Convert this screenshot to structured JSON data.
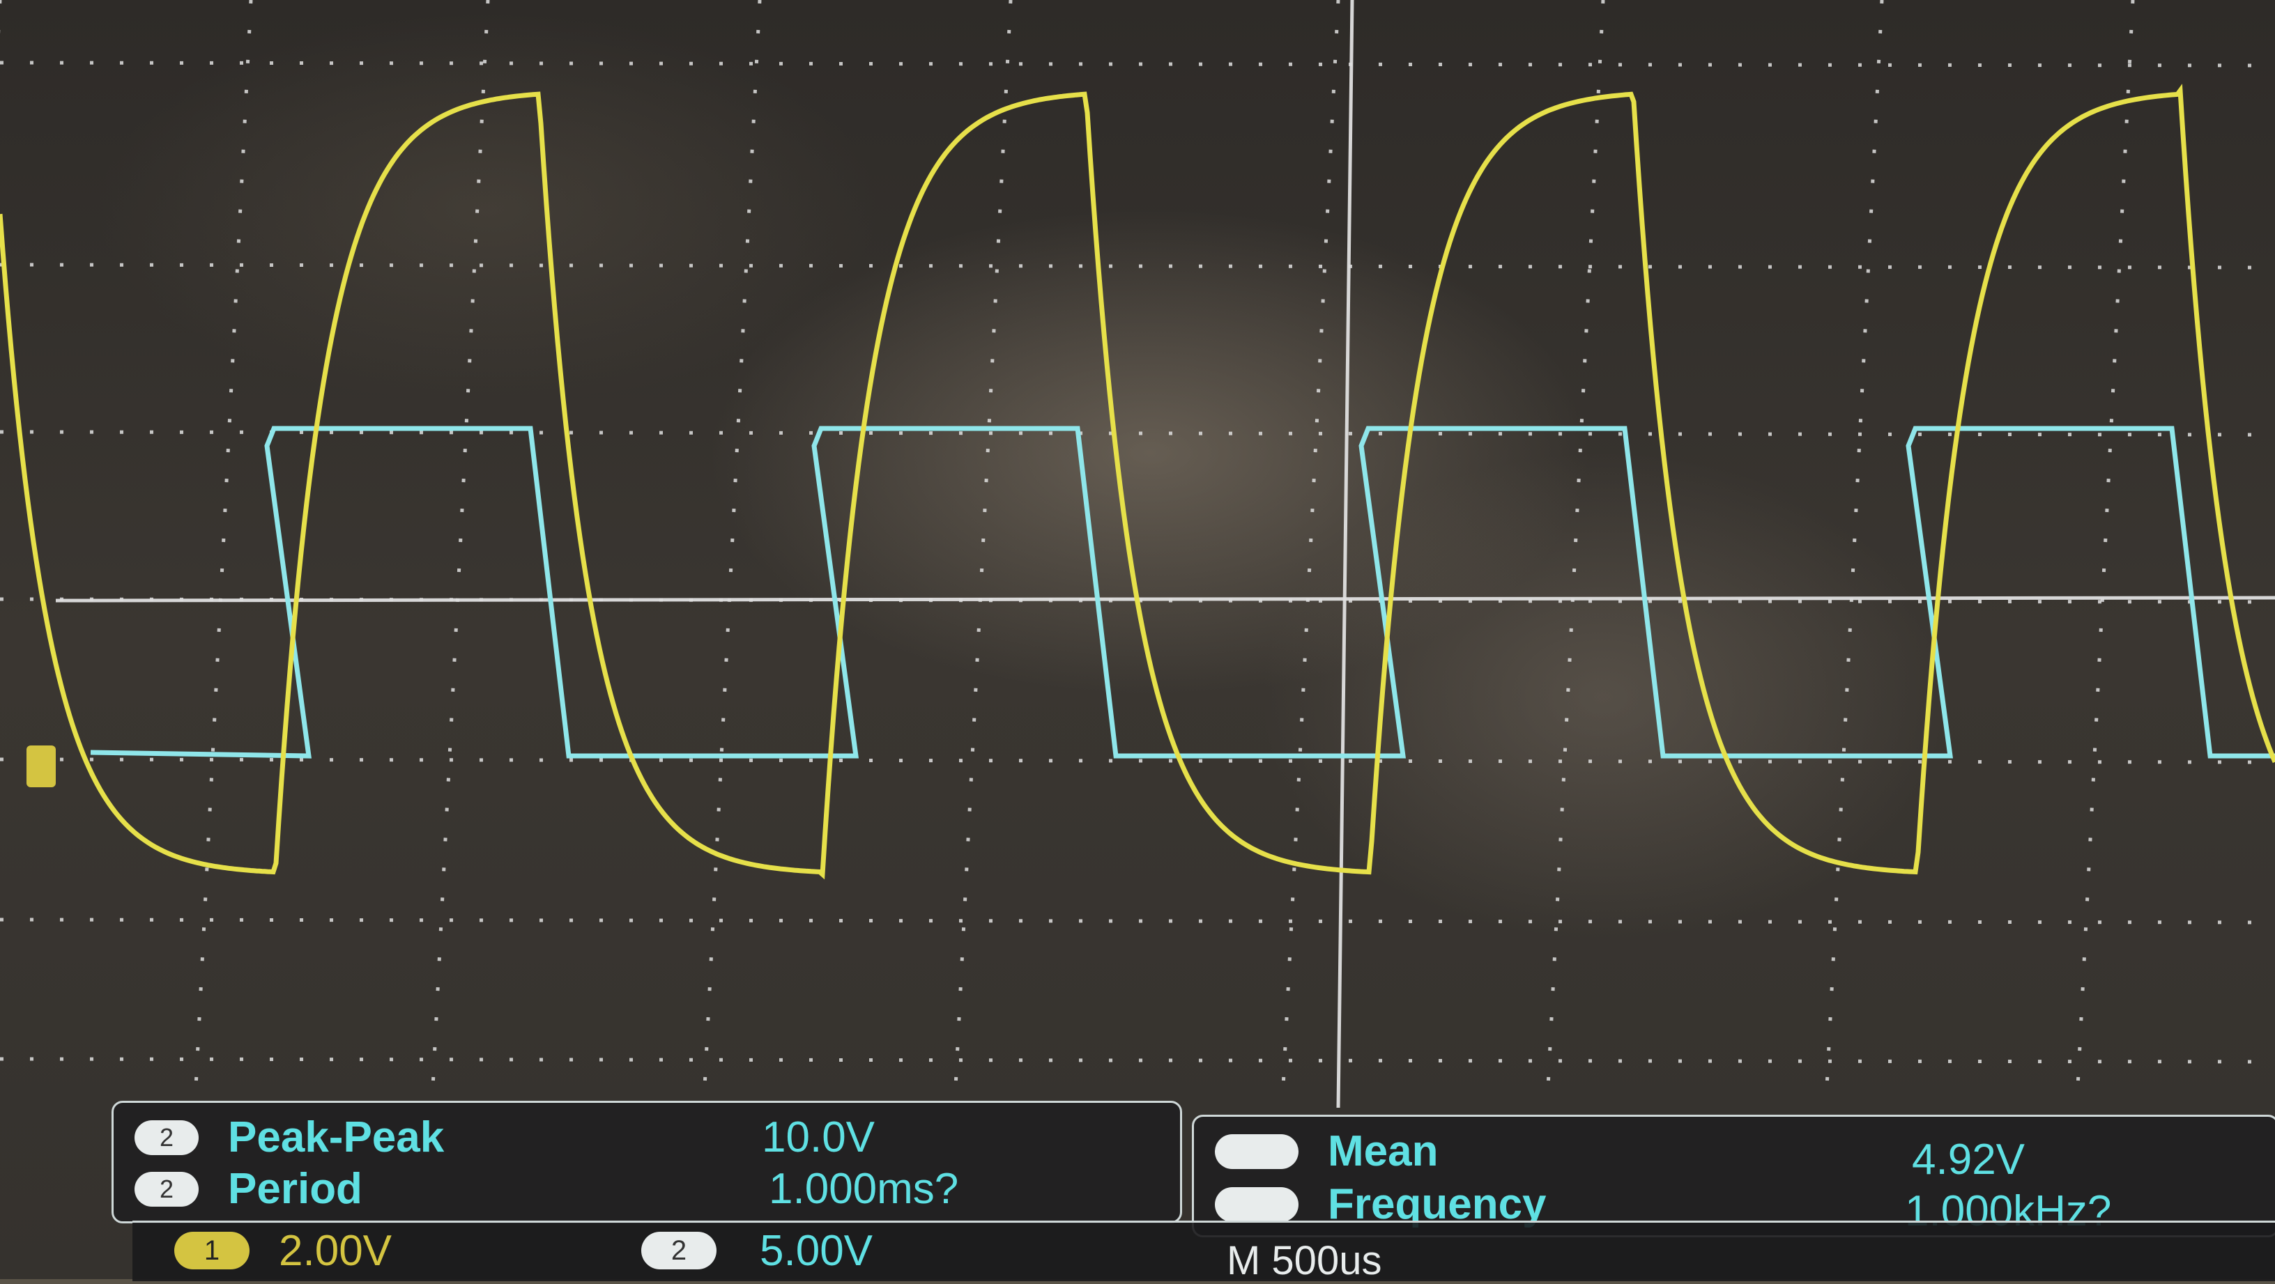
{
  "chart_data": {
    "type": "line",
    "title": "",
    "xlabel": "",
    "ylabel": "",
    "grid": true,
    "series": [
      {
        "channel": "1",
        "color": "#e6e04a",
        "shape": "RC-filtered square wave",
        "scale": "2.00V"
      },
      {
        "channel": "2",
        "color": "#8fe6ea",
        "shape": "square wave",
        "scale": "5.00V"
      }
    ],
    "measurements": {
      "left": [
        {
          "channel": "2",
          "label": "Peak-Peak",
          "value": "10.0V"
        },
        {
          "channel": "2",
          "label": "Period",
          "value": "1.000ms?"
        }
      ],
      "right": [
        {
          "label": "Mean",
          "value": "4.92V"
        },
        {
          "label": "Frequency",
          "value": "1.000kHz?"
        }
      ]
    },
    "channel_scales": {
      "ch1": "2.00V",
      "ch2": "5.00V"
    },
    "timebase": "M 500us"
  }
}
